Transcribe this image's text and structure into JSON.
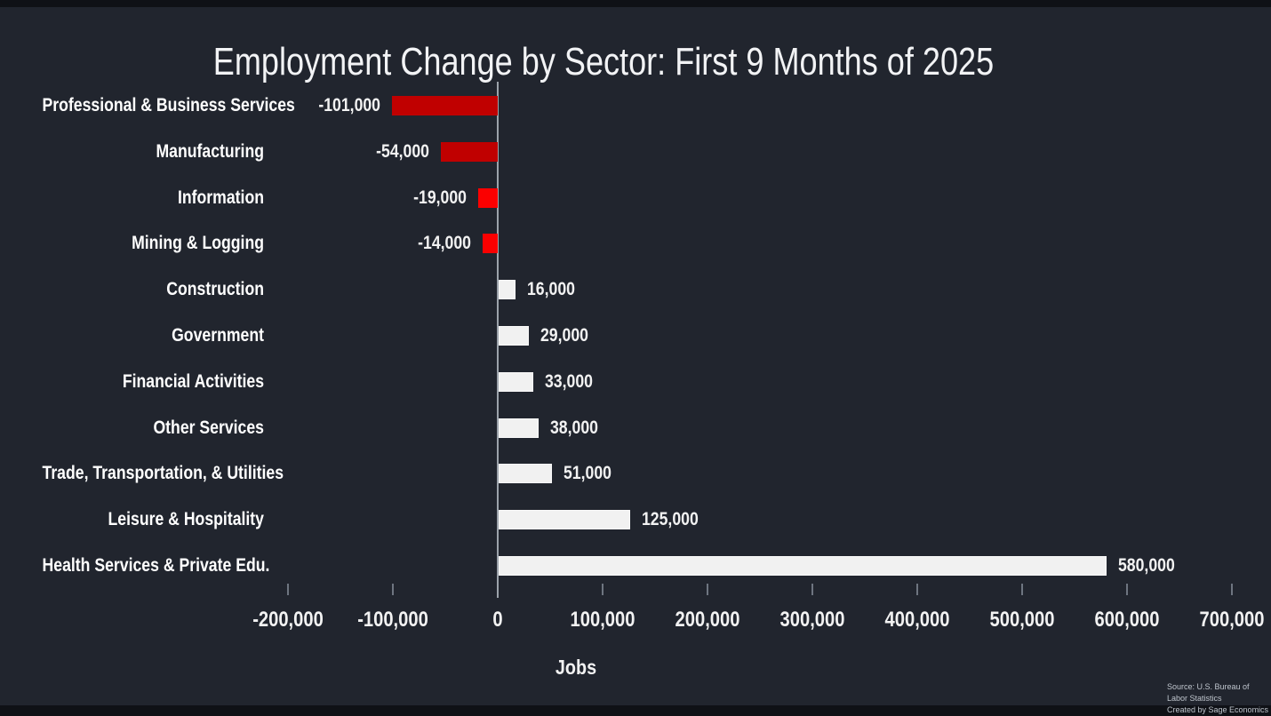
{
  "page": {
    "background": "#21252e",
    "letterbox": "#0f1116"
  },
  "chart_data": {
    "type": "bar",
    "orientation": "horizontal",
    "title": "Employment Change by Sector: First 9 Months of 2025",
    "xlabel": "Jobs",
    "categories": [
      "Professional & Business Services",
      "Manufacturing",
      "Information",
      "Mining & Logging",
      "Construction",
      "Government",
      "Financial Activities",
      "Other Services",
      "Trade, Transportation, & Utilities",
      "Leisure & Hospitality",
      "Health Services & Private Edu."
    ],
    "values": [
      -101000,
      -54000,
      -19000,
      -14000,
      16000,
      29000,
      33000,
      38000,
      51000,
      125000,
      580000
    ],
    "value_labels": [
      "-101,000",
      "-54,000",
      "-19,000",
      "-14,000",
      "16,000",
      "29,000",
      "33,000",
      "38,000",
      "51,000",
      "125,000",
      "580,000"
    ],
    "bar_colors": [
      "#c00000",
      "#c00000",
      "#fb0000",
      "#fb0000",
      "#f1f1f1",
      "#f1f1f1",
      "#f1f1f1",
      "#f1f1f1",
      "#f1f1f1",
      "#f1f1f1",
      "#f1f1f1"
    ],
    "negative_color_dark": "#c00000",
    "negative_color_bright": "#fb0000",
    "positive_color": "#f1f1f1",
    "axis_line_color": "#9ca3ab",
    "xlim": [
      -200000,
      700000
    ],
    "x_ticks": [
      -200000,
      -100000,
      0,
      100000,
      200000,
      300000,
      400000,
      500000,
      600000,
      700000
    ],
    "x_tick_labels": [
      "-200,000",
      "-100,000",
      "0",
      "100,000",
      "200,000",
      "300,000",
      "400,000",
      "500,000",
      "600,000",
      "700,000"
    ],
    "grid": false,
    "legend": false
  },
  "footer": {
    "source_line1": "Source: U.S. Bureau of Labor Statistics",
    "source_line2": "Created by Sage Economics"
  }
}
